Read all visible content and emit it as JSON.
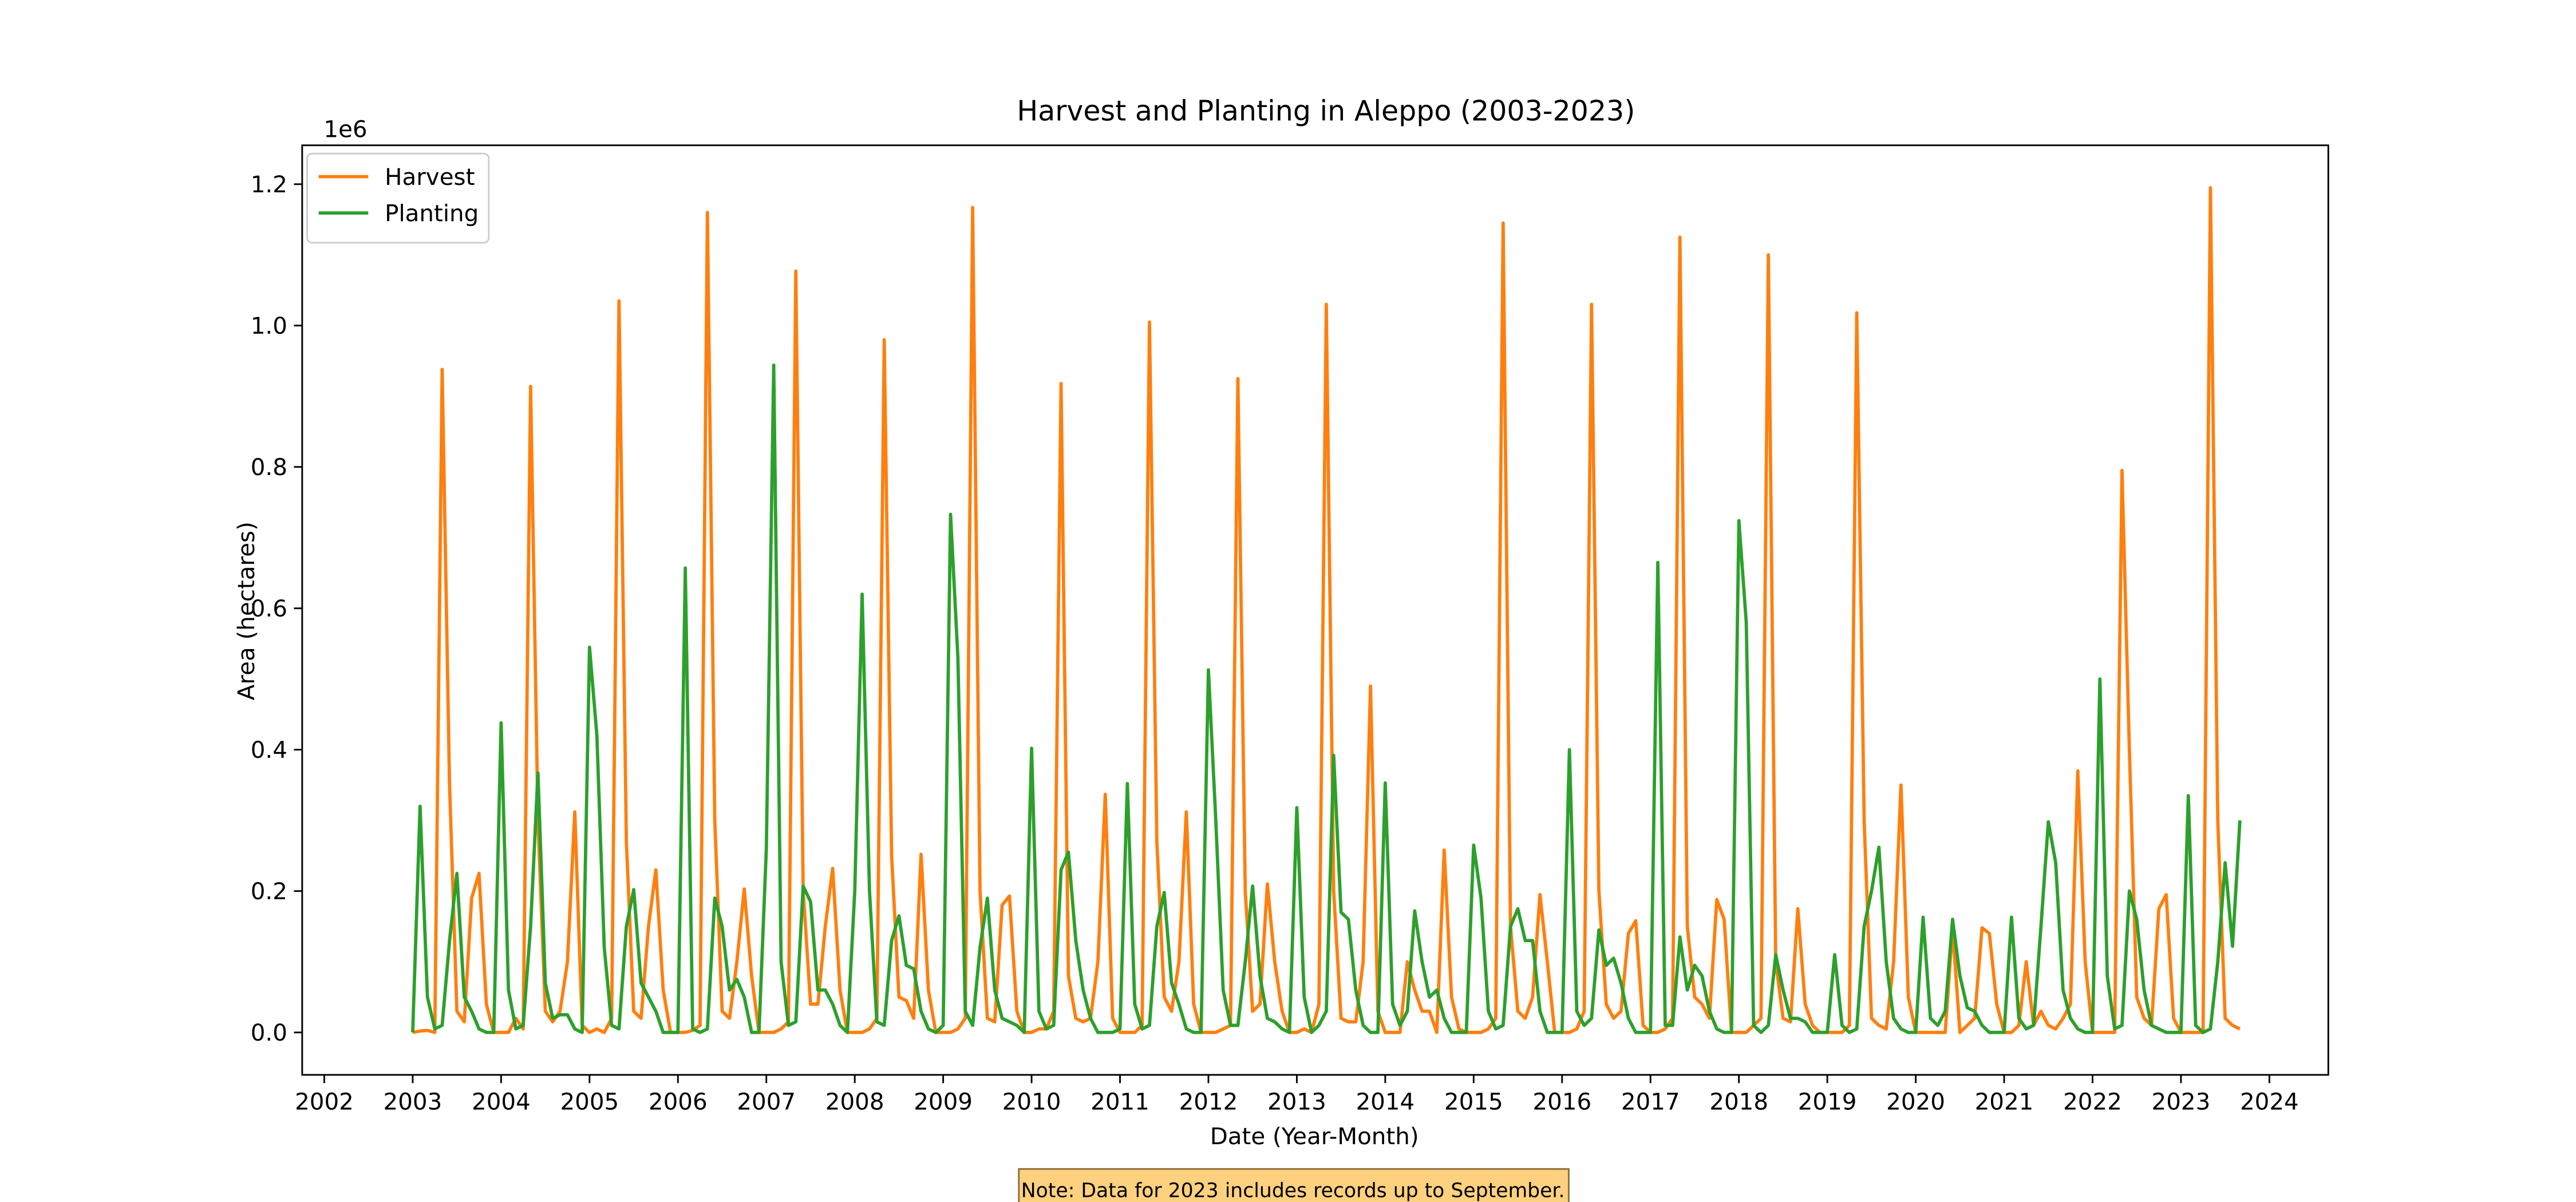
{
  "chart_data": {
    "type": "line",
    "title": "Harvest and Planting in Aleppo (2003-2023)",
    "xlabel": "Date (Year-Month)",
    "ylabel": "Area (hectares)",
    "y_offset_label": "1e6",
    "annotation": "Note: Data for 2023 includes records up to September.",
    "legend": "upper left",
    "grid": false,
    "xlim": [
      "2001-10",
      "2024-09"
    ],
    "xticks": [
      2002,
      2003,
      2004,
      2005,
      2006,
      2007,
      2008,
      2009,
      2010,
      2011,
      2012,
      2013,
      2014,
      2015,
      2016,
      2017,
      2018,
      2019,
      2020,
      2021,
      2022,
      2023,
      2024
    ],
    "ylim": [
      -60000,
      1255000
    ],
    "yticks": [
      {
        "value": 0,
        "label": "0.0"
      },
      {
        "value": 200000,
        "label": "0.2"
      },
      {
        "value": 400000,
        "label": "0.4"
      },
      {
        "value": 600000,
        "label": "0.6"
      },
      {
        "value": 800000,
        "label": "0.8"
      },
      {
        "value": 1000000,
        "label": "1.0"
      },
      {
        "value": 1200000,
        "label": "1.2"
      }
    ],
    "x": [
      "2003-01",
      "2003-02",
      "2003-03",
      "2003-04",
      "2003-05",
      "2003-06",
      "2003-07",
      "2003-08",
      "2003-09",
      "2003-10",
      "2003-11",
      "2003-12",
      "2004-01",
      "2004-02",
      "2004-03",
      "2004-04",
      "2004-05",
      "2004-06",
      "2004-07",
      "2004-08",
      "2004-09",
      "2004-10",
      "2004-11",
      "2004-12",
      "2005-01",
      "2005-02",
      "2005-03",
      "2005-04",
      "2005-05",
      "2005-06",
      "2005-07",
      "2005-08",
      "2005-09",
      "2005-10",
      "2005-11",
      "2005-12",
      "2006-01",
      "2006-02",
      "2006-03",
      "2006-04",
      "2006-05",
      "2006-06",
      "2006-07",
      "2006-08",
      "2006-09",
      "2006-10",
      "2006-11",
      "2006-12",
      "2007-01",
      "2007-02",
      "2007-03",
      "2007-04",
      "2007-05",
      "2007-06",
      "2007-07",
      "2007-08",
      "2007-09",
      "2007-10",
      "2007-11",
      "2007-12",
      "2008-01",
      "2008-02",
      "2008-03",
      "2008-04",
      "2008-05",
      "2008-06",
      "2008-07",
      "2008-08",
      "2008-09",
      "2008-10",
      "2008-11",
      "2008-12",
      "2009-01",
      "2009-02",
      "2009-03",
      "2009-04",
      "2009-05",
      "2009-06",
      "2009-07",
      "2009-08",
      "2009-09",
      "2009-10",
      "2009-11",
      "2009-12",
      "2010-01",
      "2010-02",
      "2010-03",
      "2010-04",
      "2010-05",
      "2010-06",
      "2010-07",
      "2010-08",
      "2010-09",
      "2010-10",
      "2010-11",
      "2010-12",
      "2011-01",
      "2011-02",
      "2011-03",
      "2011-04",
      "2011-05",
      "2011-06",
      "2011-07",
      "2011-08",
      "2011-09",
      "2011-10",
      "2011-11",
      "2011-12",
      "2012-01",
      "2012-02",
      "2012-03",
      "2012-04",
      "2012-05",
      "2012-06",
      "2012-07",
      "2012-08",
      "2012-09",
      "2012-10",
      "2012-11",
      "2012-12",
      "2013-01",
      "2013-02",
      "2013-03",
      "2013-04",
      "2013-05",
      "2013-06",
      "2013-07",
      "2013-08",
      "2013-09",
      "2013-10",
      "2013-11",
      "2013-12",
      "2014-01",
      "2014-02",
      "2014-03",
      "2014-04",
      "2014-05",
      "2014-06",
      "2014-07",
      "2014-08",
      "2014-09",
      "2014-10",
      "2014-11",
      "2014-12",
      "2015-01",
      "2015-02",
      "2015-03",
      "2015-04",
      "2015-05",
      "2015-06",
      "2015-07",
      "2015-08",
      "2015-09",
      "2015-10",
      "2015-11",
      "2015-12",
      "2016-01",
      "2016-02",
      "2016-03",
      "2016-04",
      "2016-05",
      "2016-06",
      "2016-07",
      "2016-08",
      "2016-09",
      "2016-10",
      "2016-11",
      "2016-12",
      "2017-01",
      "2017-02",
      "2017-03",
      "2017-04",
      "2017-05",
      "2017-06",
      "2017-07",
      "2017-08",
      "2017-09",
      "2017-10",
      "2017-11",
      "2017-12",
      "2018-01",
      "2018-02",
      "2018-03",
      "2018-04",
      "2018-05",
      "2018-06",
      "2018-07",
      "2018-08",
      "2018-09",
      "2018-10",
      "2018-11",
      "2018-12",
      "2019-01",
      "2019-02",
      "2019-03",
      "2019-04",
      "2019-05",
      "2019-06",
      "2019-07",
      "2019-08",
      "2019-09",
      "2019-10",
      "2019-11",
      "2019-12",
      "2020-01",
      "2020-02",
      "2020-03",
      "2020-04",
      "2020-05",
      "2020-06",
      "2020-07",
      "2020-08",
      "2020-09",
      "2020-10",
      "2020-11",
      "2020-12",
      "2021-01",
      "2021-02",
      "2021-03",
      "2021-04",
      "2021-05",
      "2021-06",
      "2021-07",
      "2021-08",
      "2021-09",
      "2021-10",
      "2021-11",
      "2021-12",
      "2022-01",
      "2022-02",
      "2022-03",
      "2022-04",
      "2022-05",
      "2022-06",
      "2022-07",
      "2022-08",
      "2022-09",
      "2022-10",
      "2022-11",
      "2022-12",
      "2023-01",
      "2023-02",
      "2023-03",
      "2023-04",
      "2023-05",
      "2023-06",
      "2023-07",
      "2023-08",
      "2023-09"
    ],
    "series": [
      {
        "name": "Harvest",
        "color": "#ff7f0e",
        "values": [
          0,
          2000,
          3000,
          0,
          938000,
          350000,
          30000,
          15000,
          190000,
          225000,
          40000,
          0,
          0,
          0,
          20000,
          5000,
          914000,
          300000,
          30000,
          15000,
          30000,
          100000,
          312000,
          10000,
          0,
          5000,
          0,
          20000,
          1035000,
          270000,
          30000,
          20000,
          150000,
          230000,
          60000,
          0,
          0,
          0,
          3000,
          10000,
          1160000,
          300000,
          30000,
          20000,
          100000,
          203000,
          80000,
          0,
          0,
          0,
          5000,
          15000,
          1077000,
          200000,
          40000,
          40000,
          150000,
          232000,
          60000,
          0,
          0,
          0,
          5000,
          20000,
          980000,
          250000,
          50000,
          45000,
          20000,
          252000,
          60000,
          0,
          0,
          0,
          5000,
          20000,
          1167000,
          200000,
          20000,
          15000,
          180000,
          193000,
          30000,
          0,
          0,
          5000,
          5000,
          30000,
          918000,
          80000,
          20000,
          15000,
          20000,
          100000,
          337000,
          20000,
          0,
          0,
          0,
          10000,
          1005000,
          270000,
          50000,
          30000,
          100000,
          312000,
          40000,
          0,
          0,
          0,
          5000,
          10000,
          925000,
          200000,
          30000,
          40000,
          210000,
          100000,
          30000,
          0,
          0,
          5000,
          0,
          40000,
          1030000,
          200000,
          20000,
          15000,
          15000,
          100000,
          490000,
          30000,
          0,
          0,
          0,
          100000,
          60000,
          30000,
          30000,
          0,
          258000,
          50000,
          5000,
          0,
          0,
          0,
          5000,
          20000,
          1145000,
          150000,
          30000,
          20000,
          50000,
          195000,
          100000,
          0,
          0,
          0,
          5000,
          30000,
          1030000,
          200000,
          40000,
          20000,
          30000,
          140000,
          158000,
          10000,
          0,
          0,
          5000,
          20000,
          1125000,
          150000,
          50000,
          40000,
          20000,
          188000,
          160000,
          0,
          0,
          0,
          10000,
          20000,
          1100000,
          100000,
          20000,
          15000,
          175000,
          40000,
          10000,
          0,
          0,
          0,
          0,
          10000,
          1018000,
          300000,
          20000,
          10000,
          5000,
          100000,
          350000,
          50000,
          0,
          0,
          0,
          0,
          0,
          148000,
          0,
          10000,
          20000,
          148000,
          140000,
          40000,
          0,
          0,
          10000,
          100000,
          10000,
          30000,
          10000,
          5000,
          20000,
          40000,
          370000,
          100000,
          0,
          0,
          0,
          0,
          795000,
          400000,
          50000,
          20000,
          10000,
          175000,
          195000,
          20000,
          0,
          0,
          0,
          0,
          1195000,
          300000,
          20000,
          10000,
          5000
        ]
      },
      {
        "name": "Planting",
        "color": "#2ca02c",
        "values": [
          0,
          320000,
          50000,
          5000,
          10000,
          130000,
          225000,
          50000,
          30000,
          5000,
          0,
          0,
          438000,
          60000,
          5000,
          10000,
          150000,
          367000,
          70000,
          20000,
          25000,
          25000,
          5000,
          0,
          545000,
          420000,
          120000,
          10000,
          5000,
          150000,
          202000,
          70000,
          50000,
          30000,
          0,
          0,
          0,
          657000,
          5000,
          0,
          5000,
          190000,
          150000,
          60000,
          75000,
          50000,
          0,
          0,
          260000,
          944000,
          100000,
          10000,
          15000,
          207000,
          185000,
          60000,
          60000,
          40000,
          10000,
          0,
          200000,
          620000,
          200000,
          15000,
          10000,
          130000,
          165000,
          95000,
          90000,
          30000,
          5000,
          0,
          10000,
          733000,
          530000,
          30000,
          10000,
          120000,
          190000,
          60000,
          20000,
          15000,
          10000,
          0,
          402000,
          30000,
          5000,
          10000,
          230000,
          255000,
          130000,
          60000,
          20000,
          0,
          0,
          0,
          5000,
          352000,
          40000,
          5000,
          10000,
          150000,
          198000,
          70000,
          40000,
          5000,
          0,
          0,
          513000,
          300000,
          60000,
          10000,
          10000,
          100000,
          207000,
          80000,
          20000,
          15000,
          5000,
          0,
          318000,
          50000,
          0,
          10000,
          30000,
          392000,
          170000,
          160000,
          60000,
          10000,
          0,
          0,
          353000,
          40000,
          10000,
          30000,
          172000,
          100000,
          50000,
          60000,
          20000,
          0,
          0,
          0,
          265000,
          190000,
          30000,
          5000,
          10000,
          150000,
          175000,
          130000,
          130000,
          30000,
          0,
          0,
          0,
          400000,
          30000,
          10000,
          20000,
          145000,
          95000,
          105000,
          70000,
          20000,
          0,
          0,
          0,
          665000,
          10000,
          10000,
          135000,
          60000,
          95000,
          80000,
          30000,
          5000,
          0,
          0,
          724000,
          580000,
          10000,
          0,
          10000,
          110000,
          60000,
          20000,
          20000,
          15000,
          0,
          0,
          0,
          110000,
          10000,
          0,
          5000,
          150000,
          200000,
          262000,
          100000,
          20000,
          5000,
          0,
          0,
          163000,
          20000,
          10000,
          30000,
          160000,
          80000,
          35000,
          30000,
          10000,
          0,
          0,
          0,
          163000,
          20000,
          5000,
          10000,
          150000,
          298000,
          240000,
          60000,
          20000,
          5000,
          0,
          0,
          500000,
          80000,
          5000,
          10000,
          200000,
          160000,
          60000,
          10000,
          5000,
          0,
          0,
          0,
          335000,
          10000,
          0,
          5000,
          100000,
          240000,
          122000,
          300000
        ]
      }
    ]
  }
}
